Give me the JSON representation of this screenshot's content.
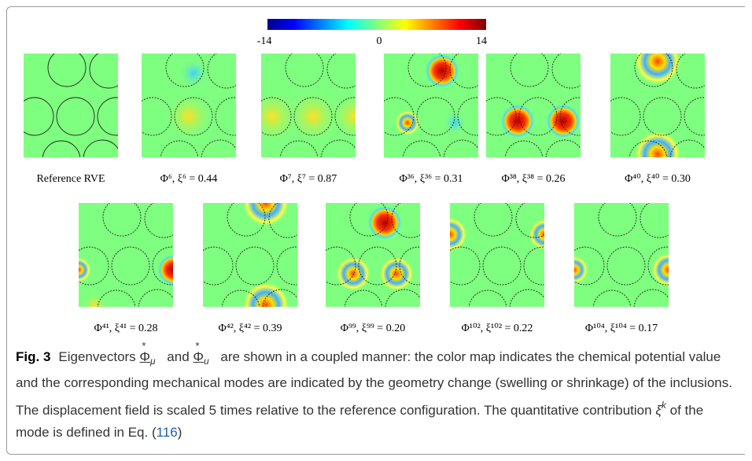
{
  "colorbar": {
    "ticks": [
      "-14",
      "0",
      "14"
    ]
  },
  "panels": [
    {
      "label": "Reference RVE"
    },
    {
      "label": "Φ⁶,  ξ⁶ = 0.44"
    },
    {
      "label": "Φ⁷,  ξ⁷ = 0.87"
    },
    {
      "label": "Φ³⁶,  ξ³⁶ = 0.31"
    },
    {
      "label": "Φ³⁸,  ξ³⁸ = 0.26"
    },
    {
      "label": "Φ⁴⁰,  ξ⁴⁰ = 0.30"
    },
    {
      "label": "Φ⁴¹,  ξ⁴¹ = 0.28"
    },
    {
      "label": "Φ⁴²,  ξ⁴² = 0.39"
    },
    {
      "label": "Φ⁹⁹,  ξ⁹⁹ = 0.20"
    },
    {
      "label": "Φ¹⁰²,  ξ¹⁰² = 0.22"
    },
    {
      "label": "Φ¹⁰⁴,  ξ¹⁰⁴ = 0.17"
    }
  ],
  "caption": {
    "label": "Fig. 3",
    "segments": [
      {
        "text": "Eigenvectors "
      },
      {
        "base": "Φ",
        "over": "*",
        "sub": "μ"
      },
      {
        "text": " and "
      },
      {
        "base": "Φ",
        "over": "*",
        "sub": "u"
      },
      {
        "text": " are shown in a coupled manner: the color map indicates the chemical potential value and the corresponding mechanical modes are indicated by the geometry change (swelling or shrinkage) of the inclusions. The displacement field is scaled 5 times relative to the reference configuration. The quantitative contribution "
      },
      {
        "base": "ξ",
        "sup": "k"
      },
      {
        "text": " of the mode is defined in Eq. ("
      },
      {
        "link": "116"
      },
      {
        "text": ")"
      }
    ]
  }
}
